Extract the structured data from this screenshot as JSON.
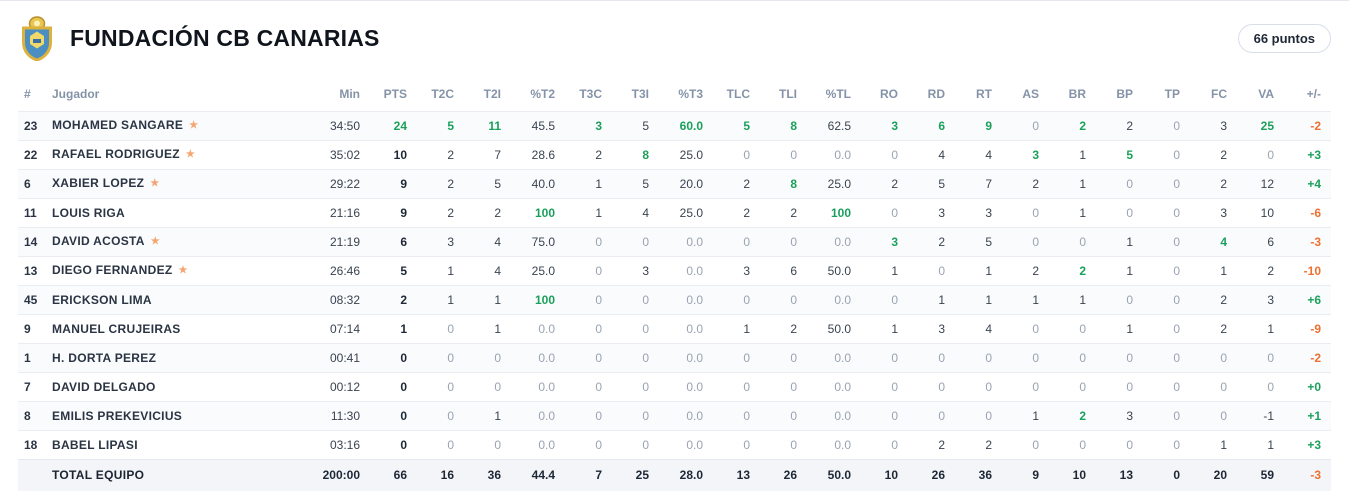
{
  "header": {
    "team_name": "FUNDACIÓN CB CANARIAS",
    "points_badge": "66 puntos"
  },
  "colors": {
    "positive_green": "#1ba05c",
    "negative_orange": "#ee7031",
    "starter_star": "#f4a571",
    "logo_gold": "#e3b83f",
    "logo_blue": "#4a8ec2"
  },
  "table": {
    "columns": [
      {
        "key": "num",
        "label": "#"
      },
      {
        "key": "player",
        "label": "Jugador"
      },
      {
        "key": "min",
        "label": "Min"
      },
      {
        "key": "pts",
        "label": "PTS"
      },
      {
        "key": "t2c",
        "label": "T2C"
      },
      {
        "key": "t2i",
        "label": "T2I"
      },
      {
        "key": "pt2",
        "label": "%T2"
      },
      {
        "key": "t3c",
        "label": "T3C"
      },
      {
        "key": "t3i",
        "label": "T3I"
      },
      {
        "key": "pt3",
        "label": "%T3"
      },
      {
        "key": "tlc",
        "label": "TLC"
      },
      {
        "key": "tli",
        "label": "TLI"
      },
      {
        "key": "ptl",
        "label": "%TL"
      },
      {
        "key": "ro",
        "label": "RO"
      },
      {
        "key": "rd",
        "label": "RD"
      },
      {
        "key": "rt",
        "label": "RT"
      },
      {
        "key": "as",
        "label": "AS"
      },
      {
        "key": "br",
        "label": "BR"
      },
      {
        "key": "bp",
        "label": "BP"
      },
      {
        "key": "tp",
        "label": "TP"
      },
      {
        "key": "fc",
        "label": "FC"
      },
      {
        "key": "va",
        "label": "VA"
      },
      {
        "key": "pm",
        "label": "+/-"
      }
    ],
    "rows": [
      {
        "number": "23",
        "name": "MOHAMED SANGARE",
        "starter": true,
        "stats": [
          "34:50",
          "24",
          "5",
          "11",
          "45.5",
          "3",
          "5",
          "60.0",
          "5",
          "8",
          "62.5",
          "3",
          "6",
          "9",
          "0",
          "2",
          "2",
          "0",
          "3",
          "25",
          "-2"
        ],
        "marks": {
          "1": "g",
          "2": "g",
          "3": "g",
          "5": "g",
          "7": "g",
          "8": "g",
          "9": "g",
          "11": "g",
          "12": "g",
          "13": "g",
          "15": "g",
          "19": "g",
          "20": "o"
        }
      },
      {
        "number": "22",
        "name": "RAFAEL RODRIGUEZ",
        "starter": true,
        "stats": [
          "35:02",
          "10",
          "2",
          "7",
          "28.6",
          "2",
          "8",
          "25.0",
          "0",
          "0",
          "0.0",
          "0",
          "4",
          "4",
          "3",
          "1",
          "5",
          "0",
          "2",
          "0",
          "+3"
        ],
        "marks": {
          "6": "g",
          "14": "g",
          "16": "g",
          "20": "g"
        }
      },
      {
        "number": "6",
        "name": "XABIER LOPEZ",
        "starter": true,
        "stats": [
          "29:22",
          "9",
          "2",
          "5",
          "40.0",
          "1",
          "5",
          "20.0",
          "2",
          "8",
          "25.0",
          "2",
          "5",
          "7",
          "2",
          "1",
          "0",
          "0",
          "2",
          "12",
          "+4"
        ],
        "marks": {
          "9": "g",
          "20": "g"
        }
      },
      {
        "number": "11",
        "name": "LOUIS RIGA",
        "starter": false,
        "stats": [
          "21:16",
          "9",
          "2",
          "2",
          "100",
          "1",
          "4",
          "25.0",
          "2",
          "2",
          "100",
          "0",
          "3",
          "3",
          "0",
          "1",
          "0",
          "0",
          "3",
          "10",
          "-6"
        ],
        "marks": {
          "4": "g",
          "10": "g",
          "20": "o"
        }
      },
      {
        "number": "14",
        "name": "DAVID ACOSTA",
        "starter": true,
        "stats": [
          "21:19",
          "6",
          "3",
          "4",
          "75.0",
          "0",
          "0",
          "0.0",
          "0",
          "0",
          "0.0",
          "3",
          "2",
          "5",
          "0",
          "0",
          "1",
          "0",
          "4",
          "6",
          "-3"
        ],
        "marks": {
          "11": "g",
          "18": "g",
          "20": "o"
        }
      },
      {
        "number": "13",
        "name": "DIEGO FERNANDEZ",
        "starter": true,
        "stats": [
          "26:46",
          "5",
          "1",
          "4",
          "25.0",
          "0",
          "3",
          "0.0",
          "3",
          "6",
          "50.0",
          "1",
          "0",
          "1",
          "2",
          "2",
          "1",
          "0",
          "1",
          "2",
          "-10"
        ],
        "marks": {
          "15": "g",
          "20": "o"
        }
      },
      {
        "number": "45",
        "name": "ERICKSON LIMA",
        "starter": false,
        "stats": [
          "08:32",
          "2",
          "1",
          "1",
          "100",
          "0",
          "0",
          "0.0",
          "0",
          "0",
          "0.0",
          "0",
          "1",
          "1",
          "1",
          "1",
          "0",
          "0",
          "2",
          "3",
          "+6"
        ],
        "marks": {
          "4": "g",
          "20": "g"
        }
      },
      {
        "number": "9",
        "name": "MANUEL CRUJEIRAS",
        "starter": false,
        "stats": [
          "07:14",
          "1",
          "0",
          "1",
          "0.0",
          "0",
          "0",
          "0.0",
          "1",
          "2",
          "50.0",
          "1",
          "3",
          "4",
          "0",
          "0",
          "1",
          "0",
          "2",
          "1",
          "-9"
        ],
        "marks": {
          "20": "o"
        }
      },
      {
        "number": "1",
        "name": "H. DORTA PEREZ",
        "starter": false,
        "stats": [
          "00:41",
          "0",
          "0",
          "0",
          "0.0",
          "0",
          "0",
          "0.0",
          "0",
          "0",
          "0.0",
          "0",
          "0",
          "0",
          "0",
          "0",
          "0",
          "0",
          "0",
          "0",
          "-2"
        ],
        "marks": {
          "20": "o"
        }
      },
      {
        "number": "7",
        "name": "DAVID DELGADO",
        "starter": false,
        "stats": [
          "00:12",
          "0",
          "0",
          "0",
          "0.0",
          "0",
          "0",
          "0.0",
          "0",
          "0",
          "0.0",
          "0",
          "0",
          "0",
          "0",
          "0",
          "0",
          "0",
          "0",
          "0",
          "+0"
        ],
        "marks": {
          "20": "g"
        }
      },
      {
        "number": "8",
        "name": "EMILIS PREKEVICIUS",
        "starter": false,
        "stats": [
          "11:30",
          "0",
          "0",
          "1",
          "0.0",
          "0",
          "0",
          "0.0",
          "0",
          "0",
          "0.0",
          "0",
          "0",
          "0",
          "1",
          "2",
          "3",
          "0",
          "0",
          "-1",
          "+1"
        ],
        "marks": {
          "15": "g",
          "20": "g"
        }
      },
      {
        "number": "18",
        "name": "BABEL LIPASI",
        "starter": false,
        "stats": [
          "03:16",
          "0",
          "0",
          "0",
          "0.0",
          "0",
          "0",
          "0.0",
          "0",
          "0",
          "0.0",
          "0",
          "2",
          "2",
          "0",
          "0",
          "0",
          "0",
          "1",
          "1",
          "+3"
        ],
        "marks": {
          "20": "g"
        }
      }
    ],
    "total": {
      "label": "TOTAL EQUIPO",
      "stats": [
        "200:00",
        "66",
        "16",
        "36",
        "44.4",
        "7",
        "25",
        "28.0",
        "13",
        "26",
        "50.0",
        "10",
        "26",
        "36",
        "9",
        "10",
        "13",
        "0",
        "20",
        "59",
        "-3"
      ],
      "marks": {
        "20": "o"
      }
    }
  }
}
